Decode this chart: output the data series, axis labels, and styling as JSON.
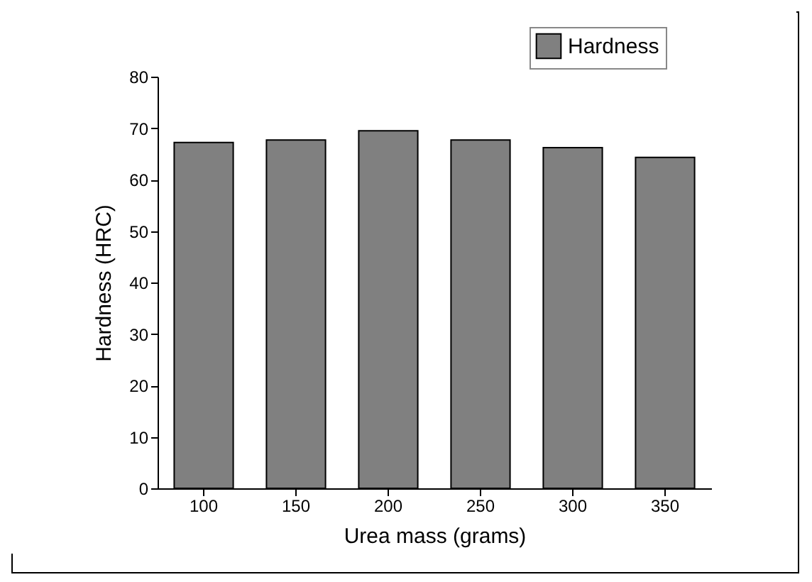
{
  "chart_data": {
    "type": "bar",
    "xlabel": "Urea mass (grams)",
    "ylabel": "Hardness (HRC)",
    "categories": [
      "100",
      "150",
      "200",
      "250",
      "300",
      "350"
    ],
    "series": [
      {
        "name": "Hardness",
        "color": "#808080",
        "values": [
          67.2,
          67.7,
          69.5,
          67.7,
          66.2,
          64.3
        ]
      }
    ],
    "ylim": [
      0,
      80
    ],
    "yticks": [
      0,
      10,
      20,
      30,
      40,
      50,
      60,
      70,
      80
    ],
    "grid": false,
    "legend": "top right"
  }
}
